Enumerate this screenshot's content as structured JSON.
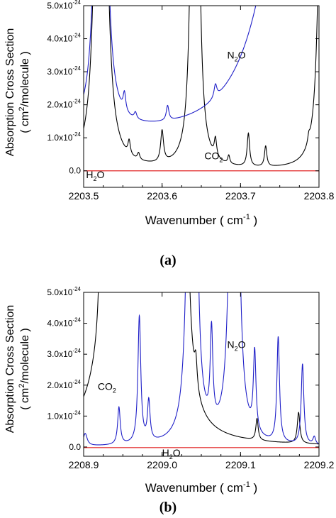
{
  "chart_data": [
    {
      "type": "line",
      "panel_label": "(a)",
      "xlabel": "Wavenumber ( cm",
      "xlabel_sup": "-1",
      "xlabel_end": " )",
      "ylabel_line1": "Absorption Cross Section",
      "ylabel_line2_pre": "( cm",
      "ylabel_line2_sup": "2",
      "ylabel_line2_post": "/molecule )",
      "xlim": [
        2203.5,
        2203.8
      ],
      "ylim": [
        -0.5,
        5.0
      ],
      "x_ticks": [
        "2203.5",
        "2203.6",
        "2203.7",
        "2203.8"
      ],
      "x_tick_values": [
        2203.5,
        2203.6,
        2203.7,
        2203.8
      ],
      "y_ticks": [
        {
          "value": 0.0,
          "base": "0.0",
          "exp": ""
        },
        {
          "value": 1.0,
          "base": "1.0x10",
          "exp": "-24"
        },
        {
          "value": 2.0,
          "base": "2.0x10",
          "exp": "-24"
        },
        {
          "value": 3.0,
          "base": "3.0x10",
          "exp": "-24"
        },
        {
          "value": 4.0,
          "base": "4.0x10",
          "exp": "-24"
        },
        {
          "value": 5.0,
          "base": "5.0x10",
          "exp": "-24"
        }
      ],
      "annotations": [
        {
          "text": "N",
          "sub": "2",
          "post": "O",
          "x": 2203.683,
          "y": 3.4
        },
        {
          "text": "CO",
          "sub": "2",
          "post": "",
          "x": 2203.654,
          "y": 0.35
        },
        {
          "text": "H",
          "sub": "2",
          "post": "O",
          "x": 2203.503,
          "y": -0.22
        }
      ],
      "baseline": 0.0,
      "series": [
        {
          "color": "#000000",
          "peaks": [
            {
              "x": 2203.522,
              "h": 60,
              "w": 0.0032
            },
            {
              "x": 2203.558,
              "h": 0.42,
              "w": 0.0018
            },
            {
              "x": 2203.57,
              "h": 0.2,
              "w": 0.0018
            },
            {
              "x": 2203.6,
              "h": 0.95,
              "w": 0.0022
            },
            {
              "x": 2203.642,
              "h": 60,
              "w": 0.0022
            },
            {
              "x": 2203.668,
              "h": 0.55,
              "w": 0.0018
            },
            {
              "x": 2203.685,
              "h": 0.25,
              "w": 0.0016
            },
            {
              "x": 2203.71,
              "h": 1.0,
              "w": 0.0019
            },
            {
              "x": 2203.732,
              "h": 0.62,
              "w": 0.0018
            },
            {
              "x": 2203.787,
              "h": 0.22,
              "w": 0.0016
            },
            {
              "x": 2203.805,
              "h": 20,
              "w": 0.004
            }
          ],
          "offset": 0.0
        },
        {
          "color": "#1f1fc8",
          "peaks": [
            {
              "x": 2203.522,
              "h": 60,
              "w": 0.003
            },
            {
              "x": 2203.552,
              "h": 0.55,
              "w": 0.002
            },
            {
              "x": 2203.566,
              "h": 0.2,
              "w": 0.002
            },
            {
              "x": 2203.607,
              "h": 0.45,
              "w": 0.002
            },
            {
              "x": 2203.668,
              "h": 0.4,
              "w": 0.0022
            },
            {
              "x": 2203.8,
              "h": 80,
              "w": 0.011
            }
          ],
          "offset": 0.55
        },
        {
          "color": "#e02020",
          "peaks": [],
          "offset": 0.0
        }
      ]
    },
    {
      "type": "line",
      "panel_label": "(b)",
      "xlabel": "Wavenumber ( cm",
      "xlabel_sup": "-1",
      "xlabel_end": " )",
      "ylabel_line1": "Absorption Cross Section",
      "ylabel_line2_pre": "( cm",
      "ylabel_line2_sup": "2",
      "ylabel_line2_post": "/molecule )",
      "xlim": [
        2208.9,
        2209.2
      ],
      "ylim": [
        -0.3,
        5.0
      ],
      "x_ticks": [
        "2208.9",
        "2209.0",
        "2209.1",
        "2209.2"
      ],
      "x_tick_values": [
        2208.9,
        2209.0,
        2209.1,
        2209.2
      ],
      "y_ticks": [
        {
          "value": 0.0,
          "base": "0.0",
          "exp": ""
        },
        {
          "value": 1.0,
          "base": "1.0x10",
          "exp": "-24"
        },
        {
          "value": 2.0,
          "base": "2.0x10",
          "exp": "-24"
        },
        {
          "value": 3.0,
          "base": "3.0x10",
          "exp": "-24"
        },
        {
          "value": 4.0,
          "base": "4.0x10",
          "exp": "-24"
        },
        {
          "value": 5.0,
          "base": "5.0x10",
          "exp": "-24"
        }
      ],
      "annotations": [
        {
          "text": "N",
          "sub": "2",
          "post": "O",
          "x": 2209.083,
          "y": 3.2
        },
        {
          "text": "CO",
          "sub": "2",
          "post": "",
          "x": 2208.918,
          "y": 1.85
        },
        {
          "text": "H",
          "sub": "2",
          "post": "O",
          "x": 2209.0,
          "y": -0.3
        }
      ],
      "baseline": 0.0,
      "series": [
        {
          "color": "#000000",
          "peaks": [
            {
              "x": 2208.922,
              "h": 4.0,
              "w": 0.0022
            },
            {
              "x": 2208.95,
              "h": 60,
              "w": 0.008
            },
            {
              "x": 2208.982,
              "h": 1.2,
              "w": 0.002
            },
            {
              "x": 2208.99,
              "h": 60,
              "w": 0.0022
            },
            {
              "x": 2209.008,
              "h": 60,
              "w": 0.0022
            },
            {
              "x": 2209.025,
              "h": 60,
              "w": 0.0028
            },
            {
              "x": 2209.043,
              "h": 0.9,
              "w": 0.002
            },
            {
              "x": 2209.121,
              "h": 0.7,
              "w": 0.0018
            },
            {
              "x": 2209.174,
              "h": 1.0,
              "w": 0.002
            }
          ],
          "offset": 0.0
        },
        {
          "color": "#1f1fc8",
          "peaks": [
            {
              "x": 2208.902,
              "h": 0.4,
              "w": 0.003
            },
            {
              "x": 2208.945,
              "h": 1.2,
              "w": 0.002
            },
            {
              "x": 2208.971,
              "h": 4.1,
              "w": 0.0022
            },
            {
              "x": 2208.983,
              "h": 1.3,
              "w": 0.002
            },
            {
              "x": 2209.038,
              "h": 60,
              "w": 0.0025
            },
            {
              "x": 2209.044,
              "h": 2.3,
              "w": 0.0016
            },
            {
              "x": 2209.063,
              "h": 3.0,
              "w": 0.002
            },
            {
              "x": 2209.092,
              "h": 60,
              "w": 0.0025
            },
            {
              "x": 2209.118,
              "h": 2.6,
              "w": 0.002
            },
            {
              "x": 2209.148,
              "h": 3.4,
              "w": 0.002
            },
            {
              "x": 2209.179,
              "h": 2.6,
              "w": 0.002
            },
            {
              "x": 2209.194,
              "h": 0.25,
              "w": 0.002
            }
          ],
          "offset": 0.0
        },
        {
          "color": "#e02020",
          "peaks": [],
          "offset": -0.02
        }
      ]
    }
  ]
}
